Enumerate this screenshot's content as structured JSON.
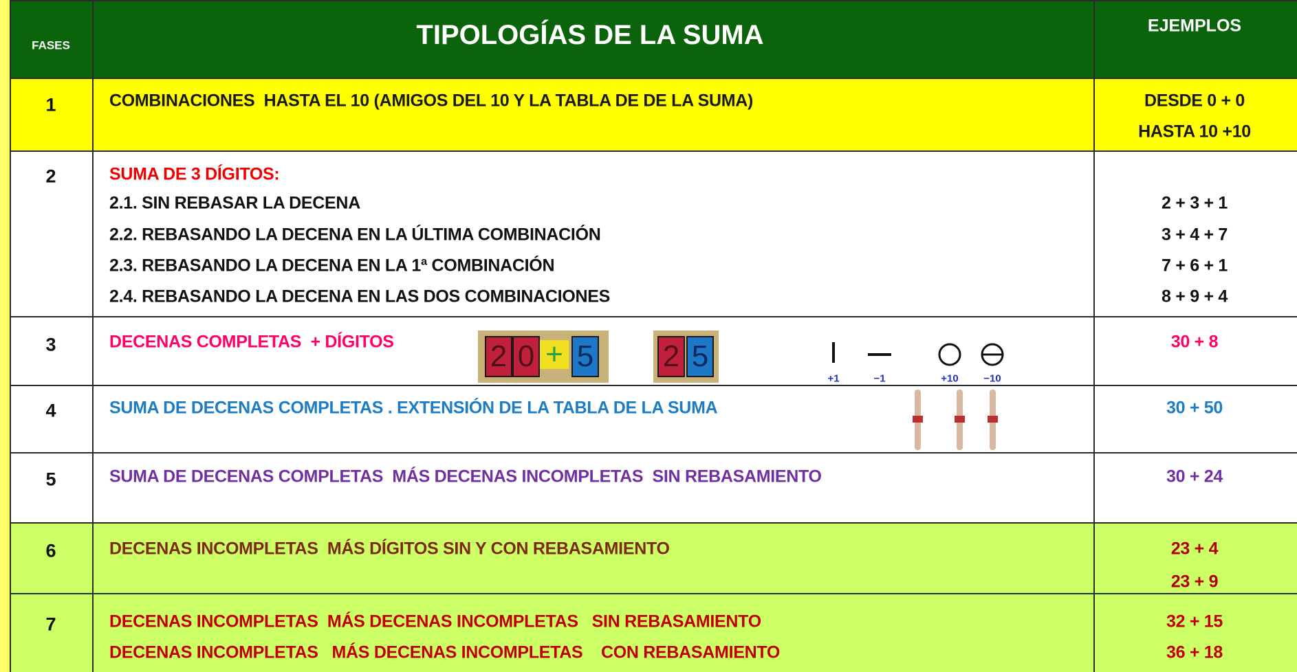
{
  "header": {
    "phases": "FASES",
    "title": "TIPOLOGÍAS DE LA SUMA",
    "examples": "EJEMPLOS"
  },
  "rows": [
    {
      "phase": "1",
      "lines": [
        "COMBINACIONES  HASTA EL 10 (AMIGOS DEL 10 Y LA TABLA DE DE LA SUMA)"
      ],
      "examples": [
        "DESDE 0 + 0",
        "HASTA 10 +10"
      ]
    },
    {
      "phase": "2",
      "lines": [
        "SUMA DE 3 DÍGITOS:",
        "2.1. SIN REBASAR LA DECENA",
        "2.2. REBASANDO LA DECENA EN LA ÚLTIMA COMBINACIÓN",
        "2.3. REBASANDO LA DECENA EN LA 1ª COMBINACIÓN",
        "2.4. REBASANDO LA DECENA EN LAS DOS COMBINACIONES"
      ],
      "examples": [
        "2 + 3 + 1",
        "3 + 4 + 7",
        "7 + 6 + 1",
        "8 + 9 + 4"
      ]
    },
    {
      "phase": "3",
      "lines": [
        "DECENAS COMPLETAS  + DÍGITOS"
      ],
      "examples": [
        "30 + 8"
      ],
      "blocks": [
        [
          "2",
          "0",
          "+",
          "5"
        ],
        [
          "2",
          "5"
        ]
      ],
      "symbols": [
        "+1",
        "−1",
        "+10",
        "−10"
      ]
    },
    {
      "phase": "4",
      "lines": [
        "SUMA DE DECENAS COMPLETAS . EXTENSIÓN DE LA TABLA DE LA SUMA"
      ],
      "examples": [
        "30 + 50"
      ]
    },
    {
      "phase": "5",
      "lines": [
        "SUMA DE DECENAS COMPLETAS  MÁS DECENAS INCOMPLETAS  SIN REBASAMIENTO"
      ],
      "examples": [
        "30 + 24"
      ]
    },
    {
      "phase": "6",
      "lines": [
        "DECENAS INCOMPLETAS  MÁS DÍGITOS SIN Y CON REBASAMIENTO"
      ],
      "examples": [
        "23 + 4",
        "23 + 9"
      ]
    },
    {
      "phase": "7",
      "lines": [
        "DECENAS INCOMPLETAS  MÁS DECENAS INCOMPLETAS   SIN REBASAMIENTO",
        "DECENAS INCOMPLETAS   MÁS DECENAS INCOMPLETAS    CON REBASAMIENTO"
      ],
      "examples": [
        "32 + 15",
        "36 + 18"
      ]
    }
  ]
}
